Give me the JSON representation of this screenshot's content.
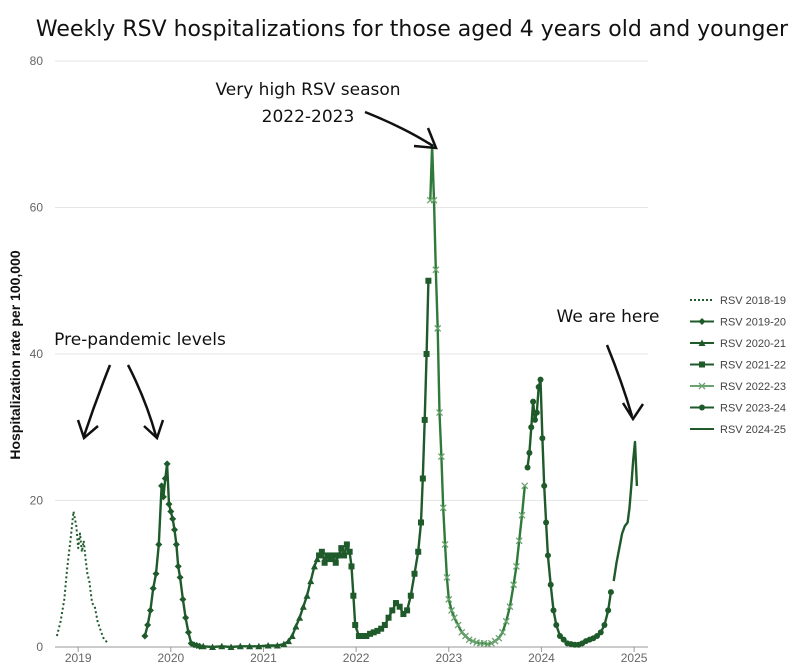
{
  "chart_data": {
    "type": "line",
    "title": "Weekly RSV hospitalizations for those aged 4 years old and younger",
    "ylabel": "Hospitalization rate per 100,000",
    "xlabel": "",
    "ylim": [
      0,
      80
    ],
    "xlim": [
      2018.75,
      2025.15
    ],
    "y_ticks": [
      0,
      20,
      40,
      60,
      80
    ],
    "x_ticks": [
      2019,
      2020,
      2021,
      2022,
      2023,
      2024,
      2025
    ],
    "x_tick_labels": [
      "2019",
      "2020",
      "2021",
      "2022",
      "2023",
      "2024",
      "2025"
    ],
    "grid": "horizontal",
    "legend_position": "right",
    "colors": {
      "line": "#1f5a2a",
      "grid": "#e6e6e6",
      "axis": "#999999"
    },
    "series": [
      {
        "name": "RSV 2018-19",
        "marker": "dotted",
        "x": [
          2018.77,
          2018.81,
          2018.85,
          2018.88,
          2018.92,
          2018.95,
          2018.98,
          2019.0,
          2019.02,
          2019.04,
          2019.06,
          2019.08,
          2019.1,
          2019.12,
          2019.15,
          2019.18,
          2019.21,
          2019.25,
          2019.28,
          2019.33
        ],
        "y": [
          1.5,
          3.5,
          6.5,
          10.5,
          15.0,
          18.5,
          16.5,
          13.5,
          15.5,
          13.0,
          14.5,
          12.0,
          10.0,
          9.0,
          6.0,
          5.5,
          3.5,
          2.0,
          1.0,
          0.5
        ]
      },
      {
        "name": "RSV 2019-20",
        "marker": "diamond",
        "x": [
          2019.72,
          2019.75,
          2019.78,
          2019.81,
          2019.84,
          2019.87,
          2019.9,
          2019.92,
          2019.94,
          2019.96,
          2019.98,
          2020.0,
          2020.02,
          2020.04,
          2020.06,
          2020.08,
          2020.1,
          2020.13,
          2020.16,
          2020.19,
          2020.22,
          2020.25,
          2020.28,
          2020.31
        ],
        "y": [
          1.5,
          3.0,
          5.0,
          8.0,
          10.0,
          14.0,
          22.0,
          20.5,
          23.0,
          25.0,
          19.5,
          18.5,
          17.5,
          16.0,
          14.0,
          11.0,
          9.5,
          6.5,
          4.0,
          2.0,
          0.5,
          0.3,
          0.2,
          0.1
        ]
      },
      {
        "name": "RSV 2020-21",
        "marker": "triangle",
        "x": [
          2020.35,
          2020.45,
          2020.55,
          2020.65,
          2020.75,
          2020.85,
          2020.95,
          2021.05,
          2021.15,
          2021.22,
          2021.27,
          2021.31,
          2021.35,
          2021.39,
          2021.43,
          2021.47,
          2021.51,
          2021.55,
          2021.58
        ],
        "y": [
          0.1,
          0.0,
          0.1,
          0.0,
          0.1,
          0.1,
          0.1,
          0.2,
          0.2,
          0.4,
          0.8,
          1.5,
          2.8,
          4.0,
          5.5,
          7.0,
          9.0,
          11.0,
          12.0
        ]
      },
      {
        "name": "RSV 2021-22",
        "marker": "square",
        "x": [
          2021.6,
          2021.63,
          2021.66,
          2021.69,
          2021.72,
          2021.75,
          2021.78,
          2021.81,
          2021.84,
          2021.87,
          2021.9,
          2021.93,
          2021.95,
          2021.97,
          2021.99,
          2022.03,
          2022.07,
          2022.11,
          2022.15,
          2022.19,
          2022.23,
          2022.27,
          2022.31,
          2022.35,
          2022.39,
          2022.43,
          2022.47,
          2022.51,
          2022.55,
          2022.59,
          2022.63,
          2022.67,
          2022.7,
          2022.72,
          2022.74,
          2022.76,
          2022.78
        ],
        "y": [
          12.5,
          13.0,
          11.5,
          12.5,
          12.0,
          12.5,
          11.5,
          12.5,
          13.5,
          12.5,
          14.0,
          13.0,
          11.0,
          7.0,
          3.0,
          1.5,
          1.5,
          1.5,
          1.8,
          2.0,
          2.2,
          2.5,
          3.0,
          4.0,
          5.0,
          6.0,
          5.5,
          4.5,
          5.0,
          7.0,
          10.0,
          13.0,
          17.0,
          23.0,
          31.0,
          40.0,
          50.0
        ]
      },
      {
        "name": "RSV 2022-23",
        "marker": "x",
        "x": [
          2022.8,
          2022.82,
          2022.84,
          2022.86,
          2022.88,
          2022.9,
          2022.92,
          2022.94,
          2022.96,
          2022.98,
          2023.0,
          2023.03,
          2023.06,
          2023.1,
          2023.14,
          2023.18,
          2023.22,
          2023.26,
          2023.3,
          2023.34,
          2023.38,
          2023.42,
          2023.46,
          2023.5,
          2023.54,
          2023.58,
          2023.62,
          2023.66,
          2023.7,
          2023.73,
          2023.76,
          2023.79,
          2023.82
        ],
        "y": [
          61.0,
          68.5,
          61.0,
          51.5,
          43.5,
          32.0,
          26.0,
          19.0,
          14.0,
          9.5,
          6.5,
          5.0,
          4.0,
          3.0,
          2.0,
          1.5,
          1.0,
          0.8,
          0.6,
          0.5,
          0.5,
          0.4,
          0.5,
          0.8,
          1.2,
          2.0,
          3.5,
          5.5,
          8.5,
          11.0,
          14.5,
          18.0,
          22.0
        ]
      },
      {
        "name": "RSV 2023-24",
        "marker": "circle",
        "x": [
          2023.85,
          2023.87,
          2023.89,
          2023.91,
          2023.93,
          2023.95,
          2023.97,
          2023.99,
          2024.01,
          2024.03,
          2024.05,
          2024.07,
          2024.1,
          2024.13,
          2024.16,
          2024.2,
          2024.24,
          2024.28,
          2024.32,
          2024.36,
          2024.4,
          2024.44,
          2024.48,
          2024.52,
          2024.56,
          2024.6,
          2024.64,
          2024.68,
          2024.72,
          2024.75
        ],
        "y": [
          24.5,
          26.5,
          30.0,
          33.5,
          31.0,
          32.0,
          35.5,
          36.5,
          28.5,
          22.0,
          17.0,
          12.5,
          8.5,
          5.0,
          3.0,
          1.5,
          1.0,
          0.5,
          0.4,
          0.3,
          0.3,
          0.5,
          0.8,
          1.0,
          1.2,
          1.5,
          2.0,
          3.0,
          5.0,
          7.5
        ]
      },
      {
        "name": "RSV 2024-25",
        "marker": "line",
        "x": [
          2024.78,
          2024.81,
          2024.84,
          2024.87,
          2024.9,
          2024.93,
          2024.95,
          2024.97,
          2024.99,
          2025.01,
          2025.03
        ],
        "y": [
          9.0,
          11.5,
          13.5,
          15.5,
          16.5,
          17.0,
          19.0,
          22.0,
          25.5,
          28.0,
          22.0
        ]
      }
    ],
    "annotations": [
      {
        "line1": "Very high RSV season",
        "line2": "2022-2023"
      },
      {
        "line1": "Pre-pandemic levels"
      },
      {
        "line1": "We are here"
      }
    ]
  }
}
